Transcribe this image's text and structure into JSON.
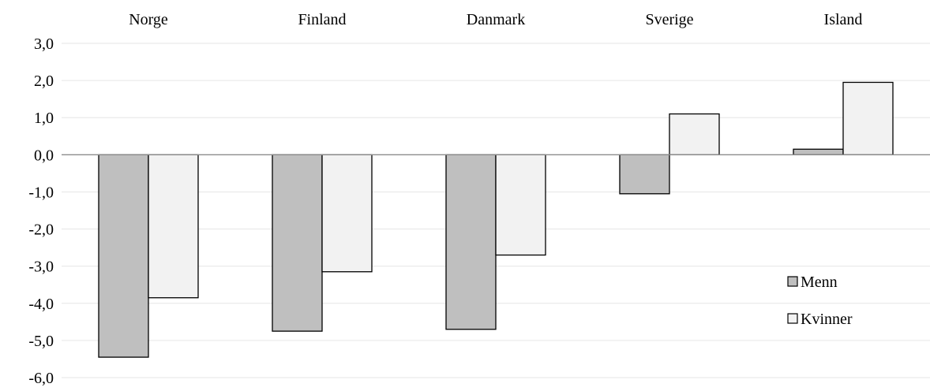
{
  "chart_data": {
    "type": "bar",
    "categories": [
      "Norge",
      "Finland",
      "Danmark",
      "Sverige",
      "Island"
    ],
    "series": [
      {
        "name": "Menn",
        "values": [
          -5.45,
          -4.75,
          -4.7,
          -1.05,
          0.15
        ],
        "color": "#bfbfbf"
      },
      {
        "name": "Kvinner",
        "values": [
          -3.85,
          -3.15,
          -2.7,
          1.1,
          1.95
        ],
        "color": "#f2f2f2"
      }
    ],
    "ylim": [
      -6.0,
      3.0
    ],
    "yticks": [
      "3,0",
      "2,0",
      "1,0",
      "0,0",
      "-1,0",
      "-2,0",
      "-3,0",
      "-4,0",
      "-5,0",
      "-6,0"
    ],
    "category_labels_position": "top",
    "grid": true,
    "legend_position": "lower-right",
    "title": "",
    "xlabel": "",
    "ylabel": ""
  }
}
